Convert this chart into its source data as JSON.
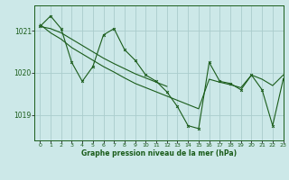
{
  "background_color": "#cce8e8",
  "grid_color": "#aacccc",
  "line_color": "#1a5c1a",
  "title": "Graphe pression niveau de la mer (hPa)",
  "xlim": [
    -0.5,
    23
  ],
  "ylim": [
    1018.4,
    1021.6
  ],
  "yticks": [
    1019,
    1020,
    1021
  ],
  "xticks": [
    0,
    1,
    2,
    3,
    4,
    5,
    6,
    7,
    8,
    9,
    10,
    11,
    12,
    13,
    14,
    15,
    16,
    17,
    18,
    19,
    20,
    21,
    22,
    23
  ],
  "series_zigzag": {
    "x": [
      0,
      1,
      2,
      3,
      4,
      5,
      6,
      7,
      8,
      9,
      10,
      11,
      12,
      13,
      14,
      15,
      16,
      17,
      18,
      19,
      20,
      21,
      22,
      23
    ],
    "y": [
      1021.1,
      1021.35,
      1021.05,
      1020.25,
      1019.8,
      1020.15,
      1020.9,
      1021.05,
      1020.55,
      1020.3,
      1019.95,
      1019.8,
      1019.55,
      1019.2,
      1018.75,
      1018.68,
      1020.25,
      1019.8,
      1019.75,
      1019.6,
      1019.95,
      1019.6,
      1018.75,
      1019.85
    ]
  },
  "series_smooth": {
    "x": [
      0,
      1,
      2,
      3,
      4,
      5,
      6,
      7,
      8,
      9,
      10,
      11,
      12,
      13,
      14,
      15,
      16,
      17,
      18,
      19,
      20,
      21,
      22,
      23
    ],
    "y": [
      1021.15,
      1020.95,
      1020.8,
      1020.6,
      1020.45,
      1020.3,
      1020.15,
      1020.02,
      1019.88,
      1019.75,
      1019.65,
      1019.55,
      1019.45,
      1019.35,
      1019.25,
      1019.15,
      1019.85,
      1019.78,
      1019.72,
      1019.65,
      1019.95,
      1019.85,
      1019.7,
      1019.95
    ]
  },
  "series_upper": {
    "x": [
      0,
      1,
      2,
      3,
      4,
      5,
      6,
      7,
      8,
      9,
      10,
      11,
      12
    ],
    "y": [
      1021.1,
      1021.05,
      1020.95,
      1020.8,
      1020.65,
      1020.5,
      1020.35,
      1020.22,
      1020.1,
      1019.98,
      1019.88,
      1019.78,
      1019.68
    ]
  }
}
